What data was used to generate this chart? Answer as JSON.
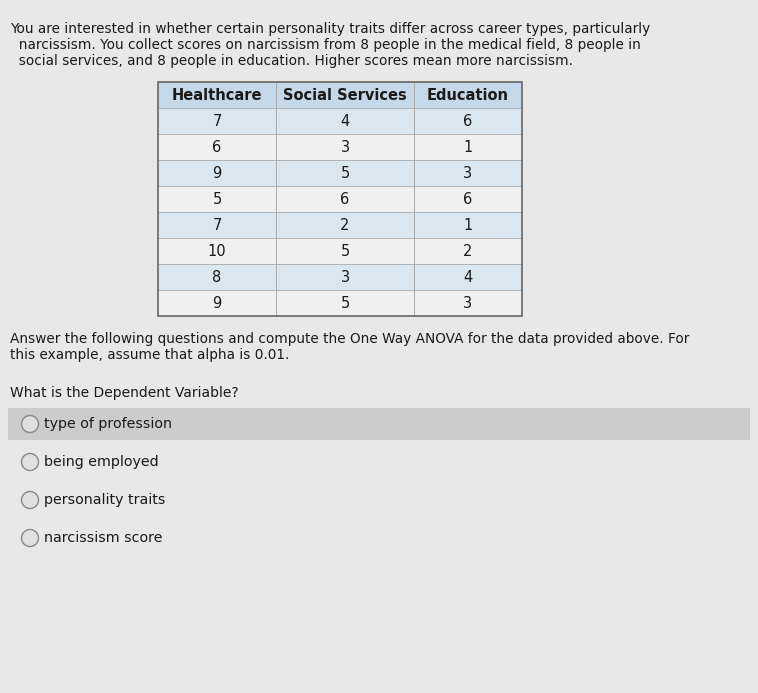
{
  "intro_text_line1": "You are interested in whether certain personality traits differ across career types, particularly",
  "intro_text_line2": "  narcissism. You collect scores on narcissism from 8 people in the medical field, 8 people in",
  "intro_text_line3": "  social services, and 8 people in education. Higher scores mean more narcissism.",
  "table_headers": [
    "Healthcare",
    "Social Services",
    "Education"
  ],
  "table_data": [
    [
      7,
      4,
      6
    ],
    [
      6,
      3,
      1
    ],
    [
      9,
      5,
      3
    ],
    [
      5,
      6,
      6
    ],
    [
      7,
      2,
      1
    ],
    [
      10,
      5,
      2
    ],
    [
      8,
      3,
      4
    ],
    [
      9,
      5,
      3
    ]
  ],
  "instruction_text_line1": "Answer the following questions and compute the One Way ANOVA for the data provided above. For",
  "instruction_text_line2": "this example, assume that alpha is 0.01.",
  "question_text": "What is the Dependent Variable?",
  "options": [
    "type of profession",
    "being employed",
    "personality traits",
    "narcissism score"
  ],
  "highlighted_option_index": 0,
  "page_bg": "#e8e8e8",
  "table_header_bg": "#c5d8ea",
  "table_row_bg_alt": "#dae6f0",
  "table_row_bg": "#f0f0f0",
  "option_highlight_bg": "#cccccc",
  "option_normal_bg": "#e8e8e8",
  "text_color": "#1a1a1a",
  "font_size_body": 9.8,
  "font_size_table": 10.5,
  "font_size_question": 10.0
}
